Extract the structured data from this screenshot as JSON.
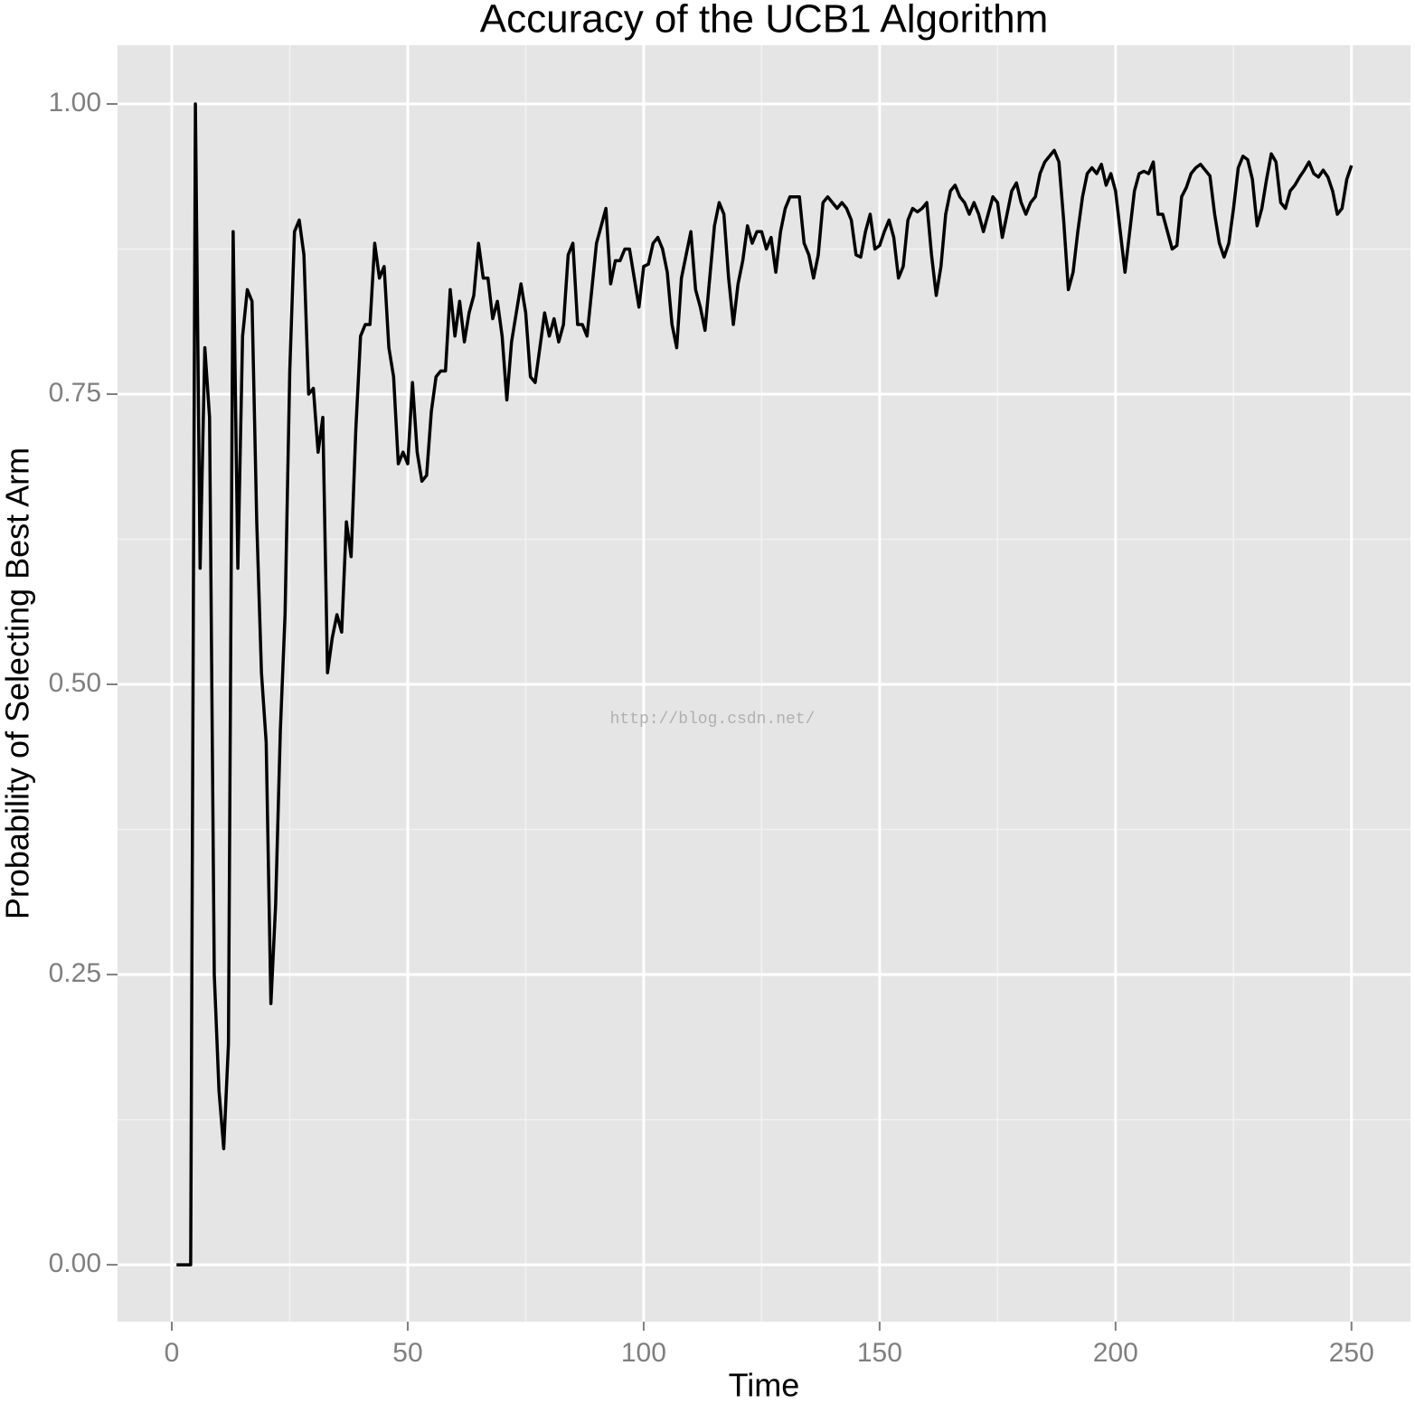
{
  "chart_data": {
    "type": "line",
    "title": "Accuracy of the UCB1 Algorithm",
    "x_label": "Time",
    "y_label": "Probability of Selecting Best Arm",
    "watermark": "http://blog.csdn.net/",
    "color": "#000000",
    "background": "#e5e5e5",
    "grid": true,
    "xlim": [
      -11.5,
      262.5
    ],
    "ylim": [
      -0.049,
      1.0506
    ],
    "xticks": [
      0,
      50,
      100,
      150,
      200,
      250
    ],
    "x_minor_ticks": [
      25,
      75,
      125,
      175,
      225
    ],
    "yticks": [
      {
        "value": 0,
        "label": "0.00"
      },
      0.25,
      {
        "value": 0.5,
        "label": "0.50"
      },
      0.75,
      {
        "value": 1,
        "label": "1.00"
      }
    ],
    "y_minor_ticks": [
      0.125,
      0.375,
      0.625,
      0.875
    ],
    "x": [
      1,
      2,
      3,
      4,
      5,
      6,
      7,
      8,
      9,
      10,
      11,
      12,
      13,
      14,
      15,
      16,
      17,
      18,
      19,
      20,
      21,
      22,
      23,
      24,
      25,
      26,
      27,
      28,
      29,
      30,
      31,
      32,
      33,
      34,
      35,
      36,
      37,
      38,
      39,
      40,
      41,
      42,
      43,
      44,
      45,
      46,
      47,
      48,
      49,
      50,
      51,
      52,
      53,
      54,
      55,
      56,
      57,
      58,
      59,
      60,
      61,
      62,
      63,
      64,
      65,
      66,
      67,
      68,
      69,
      70,
      71,
      72,
      73,
      74,
      75,
      76,
      77,
      78,
      79,
      80,
      81,
      82,
      83,
      84,
      85,
      86,
      87,
      88,
      89,
      90,
      91,
      92,
      93,
      94,
      95,
      96,
      97,
      98,
      99,
      100,
      101,
      102,
      103,
      104,
      105,
      106,
      107,
      108,
      109,
      110,
      111,
      112,
      113,
      114,
      115,
      116,
      117,
      118,
      119,
      120,
      121,
      122,
      123,
      124,
      125,
      126,
      127,
      128,
      129,
      130,
      131,
      132,
      133,
      134,
      135,
      136,
      137,
      138,
      139,
      140,
      141,
      142,
      143,
      144,
      145,
      146,
      147,
      148,
      149,
      150,
      151,
      152,
      153,
      154,
      155,
      156,
      157,
      158,
      159,
      160,
      161,
      162,
      163,
      164,
      165,
      166,
      167,
      168,
      169,
      170,
      171,
      172,
      173,
      174,
      175,
      176,
      177,
      178,
      179,
      180,
      181,
      182,
      183,
      184,
      185,
      186,
      187,
      188,
      189,
      190,
      191,
      192,
      193,
      194,
      195,
      196,
      197,
      198,
      199,
      200,
      201,
      202,
      203,
      204,
      205,
      206,
      207,
      208,
      209,
      210,
      211,
      212,
      213,
      214,
      215,
      216,
      217,
      218,
      219,
      220,
      221,
      222,
      223,
      224,
      225,
      226,
      227,
      228,
      229,
      230,
      231,
      232,
      233,
      234,
      235,
      236,
      237,
      238,
      239,
      240,
      241,
      242,
      243,
      244,
      245,
      246,
      247,
      248,
      249,
      250
    ],
    "values": [
      0,
      0,
      0,
      0,
      1.0,
      0.6,
      0.79,
      0.73,
      0.25,
      0.15,
      0.1,
      0.19,
      0.89,
      0.6,
      0.8,
      0.84,
      0.83,
      0.64,
      0.51,
      0.45,
      0.225,
      0.31,
      0.46,
      0.56,
      0.77,
      0.89,
      0.9,
      0.87,
      0.75,
      0.755,
      0.7,
      0.73,
      0.51,
      0.54,
      0.56,
      0.545,
      0.64,
      0.61,
      0.72,
      0.8,
      0.81,
      0.81,
      0.88,
      0.85,
      0.86,
      0.79,
      0.765,
      0.69,
      0.7,
      0.69,
      0.76,
      0.7,
      0.675,
      0.68,
      0.735,
      0.765,
      0.77,
      0.77,
      0.84,
      0.8,
      0.83,
      0.795,
      0.82,
      0.835,
      0.88,
      0.85,
      0.85,
      0.815,
      0.83,
      0.8,
      0.745,
      0.795,
      0.82,
      0.845,
      0.82,
      0.765,
      0.76,
      0.79,
      0.82,
      0.8,
      0.815,
      0.795,
      0.81,
      0.87,
      0.88,
      0.81,
      0.81,
      0.8,
      0.84,
      0.88,
      0.895,
      0.91,
      0.845,
      0.865,
      0.865,
      0.875,
      0.875,
      0.85,
      0.825,
      0.86,
      0.862,
      0.88,
      0.885,
      0.875,
      0.855,
      0.81,
      0.79,
      0.85,
      0.87,
      0.89,
      0.84,
      0.825,
      0.805,
      0.85,
      0.895,
      0.915,
      0.905,
      0.85,
      0.81,
      0.845,
      0.865,
      0.895,
      0.88,
      0.89,
      0.89,
      0.875,
      0.885,
      0.855,
      0.89,
      0.91,
      0.92,
      0.92,
      0.92,
      0.88,
      0.87,
      0.85,
      0.87,
      0.915,
      0.92,
      0.915,
      0.91,
      0.915,
      0.91,
      0.9,
      0.87,
      0.868,
      0.89,
      0.905,
      0.875,
      0.878,
      0.89,
      0.9,
      0.885,
      0.85,
      0.86,
      0.9,
      0.91,
      0.907,
      0.91,
      0.915,
      0.87,
      0.835,
      0.86,
      0.905,
      0.925,
      0.93,
      0.92,
      0.915,
      0.905,
      0.915,
      0.905,
      0.89,
      0.905,
      0.92,
      0.915,
      0.885,
      0.905,
      0.925,
      0.932,
      0.915,
      0.905,
      0.915,
      0.92,
      0.94,
      0.95,
      0.955,
      0.96,
      0.95,
      0.9,
      0.84,
      0.855,
      0.89,
      0.92,
      0.94,
      0.945,
      0.94,
      0.948,
      0.93,
      0.94,
      0.925,
      0.89,
      0.855,
      0.89,
      0.925,
      0.94,
      0.942,
      0.94,
      0.95,
      0.905,
      0.905,
      0.89,
      0.875,
      0.878,
      0.92,
      0.928,
      0.94,
      0.945,
      0.948,
      0.943,
      0.938,
      0.905,
      0.88,
      0.868,
      0.88,
      0.91,
      0.945,
      0.955,
      0.952,
      0.935,
      0.895,
      0.91,
      0.935,
      0.957,
      0.95,
      0.915,
      0.91,
      0.925,
      0.93,
      0.937,
      0.943,
      0.95,
      0.94,
      0.937,
      0.943,
      0.937,
      0.925,
      0.905,
      0.91,
      0.935,
      0.947
    ]
  }
}
